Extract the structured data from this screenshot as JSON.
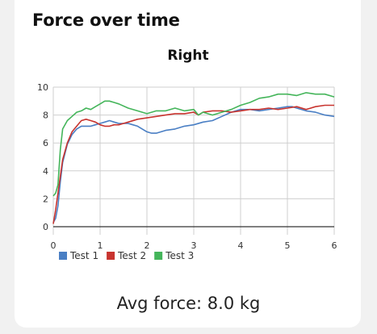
{
  "header": {
    "title": "Force over time"
  },
  "footer": {
    "avg_force": "Avg force: 8.0 kg"
  },
  "colors": {
    "test1": "#4a7fc4",
    "test2": "#c8342f",
    "test3": "#44b55a",
    "grid": "#cfcfcf",
    "axis": "#333333"
  },
  "chart_data": {
    "type": "line",
    "title": "Right",
    "xlabel": "",
    "ylabel": "",
    "xlim": [
      0,
      6
    ],
    "ylim": [
      0,
      10
    ],
    "xticks": [
      0,
      1,
      2,
      3,
      4,
      5,
      6
    ],
    "yticks": [
      0,
      2,
      4,
      6,
      8,
      10
    ],
    "grid": true,
    "legend": "bottom-left",
    "series": [
      {
        "name": "Test 1",
        "x": [
          0,
          0.05,
          0.1,
          0.15,
          0.2,
          0.3,
          0.4,
          0.5,
          0.6,
          0.7,
          0.8,
          0.9,
          1.0,
          1.1,
          1.2,
          1.3,
          1.4,
          1.5,
          1.6,
          1.7,
          1.8,
          1.9,
          2.0,
          2.1,
          2.2,
          2.3,
          2.4,
          2.6,
          2.8,
          3.0,
          3.2,
          3.4,
          3.6,
          3.8,
          4.0,
          4.2,
          4.4,
          4.6,
          4.8,
          5.0,
          5.1,
          5.2,
          5.4,
          5.6,
          5.8,
          6.0
        ],
        "values": [
          0.3,
          0.6,
          1.5,
          3.2,
          4.6,
          5.9,
          6.6,
          7.0,
          7.2,
          7.2,
          7.2,
          7.3,
          7.4,
          7.5,
          7.6,
          7.5,
          7.4,
          7.4,
          7.4,
          7.3,
          7.2,
          7.0,
          6.8,
          6.7,
          6.7,
          6.8,
          6.9,
          7.0,
          7.2,
          7.3,
          7.5,
          7.6,
          7.9,
          8.2,
          8.4,
          8.4,
          8.3,
          8.4,
          8.5,
          8.6,
          8.6,
          8.5,
          8.3,
          8.2,
          8.0,
          7.9
        ]
      },
      {
        "name": "Test 2",
        "x": [
          0,
          0.05,
          0.1,
          0.15,
          0.2,
          0.3,
          0.4,
          0.5,
          0.6,
          0.7,
          0.8,
          0.9,
          1.0,
          1.1,
          1.2,
          1.3,
          1.4,
          1.5,
          1.6,
          1.8,
          2.0,
          2.2,
          2.4,
          2.6,
          2.8,
          3.0,
          3.1,
          3.2,
          3.4,
          3.6,
          3.8,
          4.0,
          4.2,
          4.4,
          4.6,
          4.8,
          5.0,
          5.2,
          5.4,
          5.6,
          5.8,
          6.0
        ],
        "values": [
          0.2,
          1.2,
          2.4,
          3.6,
          4.8,
          6.0,
          6.8,
          7.2,
          7.6,
          7.7,
          7.6,
          7.5,
          7.3,
          7.2,
          7.2,
          7.3,
          7.3,
          7.4,
          7.5,
          7.7,
          7.8,
          7.9,
          8.0,
          8.1,
          8.1,
          8.2,
          8.0,
          8.2,
          8.3,
          8.3,
          8.2,
          8.3,
          8.4,
          8.4,
          8.5,
          8.4,
          8.5,
          8.6,
          8.4,
          8.6,
          8.7,
          8.7
        ]
      },
      {
        "name": "Test 3",
        "x": [
          0,
          0.05,
          0.1,
          0.15,
          0.2,
          0.3,
          0.4,
          0.5,
          0.6,
          0.7,
          0.8,
          0.9,
          1.0,
          1.1,
          1.2,
          1.3,
          1.4,
          1.6,
          1.8,
          2.0,
          2.2,
          2.4,
          2.6,
          2.8,
          3.0,
          3.1,
          3.2,
          3.4,
          3.6,
          3.8,
          4.0,
          4.2,
          4.4,
          4.6,
          4.8,
          5.0,
          5.2,
          5.4,
          5.6,
          5.8,
          6.0
        ],
        "values": [
          2.2,
          2.4,
          3.0,
          5.5,
          7.0,
          7.6,
          7.9,
          8.2,
          8.3,
          8.5,
          8.4,
          8.6,
          8.8,
          9.0,
          9.0,
          8.9,
          8.8,
          8.5,
          8.3,
          8.1,
          8.3,
          8.3,
          8.5,
          8.3,
          8.4,
          8.0,
          8.2,
          8.0,
          8.2,
          8.4,
          8.7,
          8.9,
          9.2,
          9.3,
          9.5,
          9.5,
          9.4,
          9.6,
          9.5,
          9.5,
          9.3
        ]
      }
    ]
  }
}
